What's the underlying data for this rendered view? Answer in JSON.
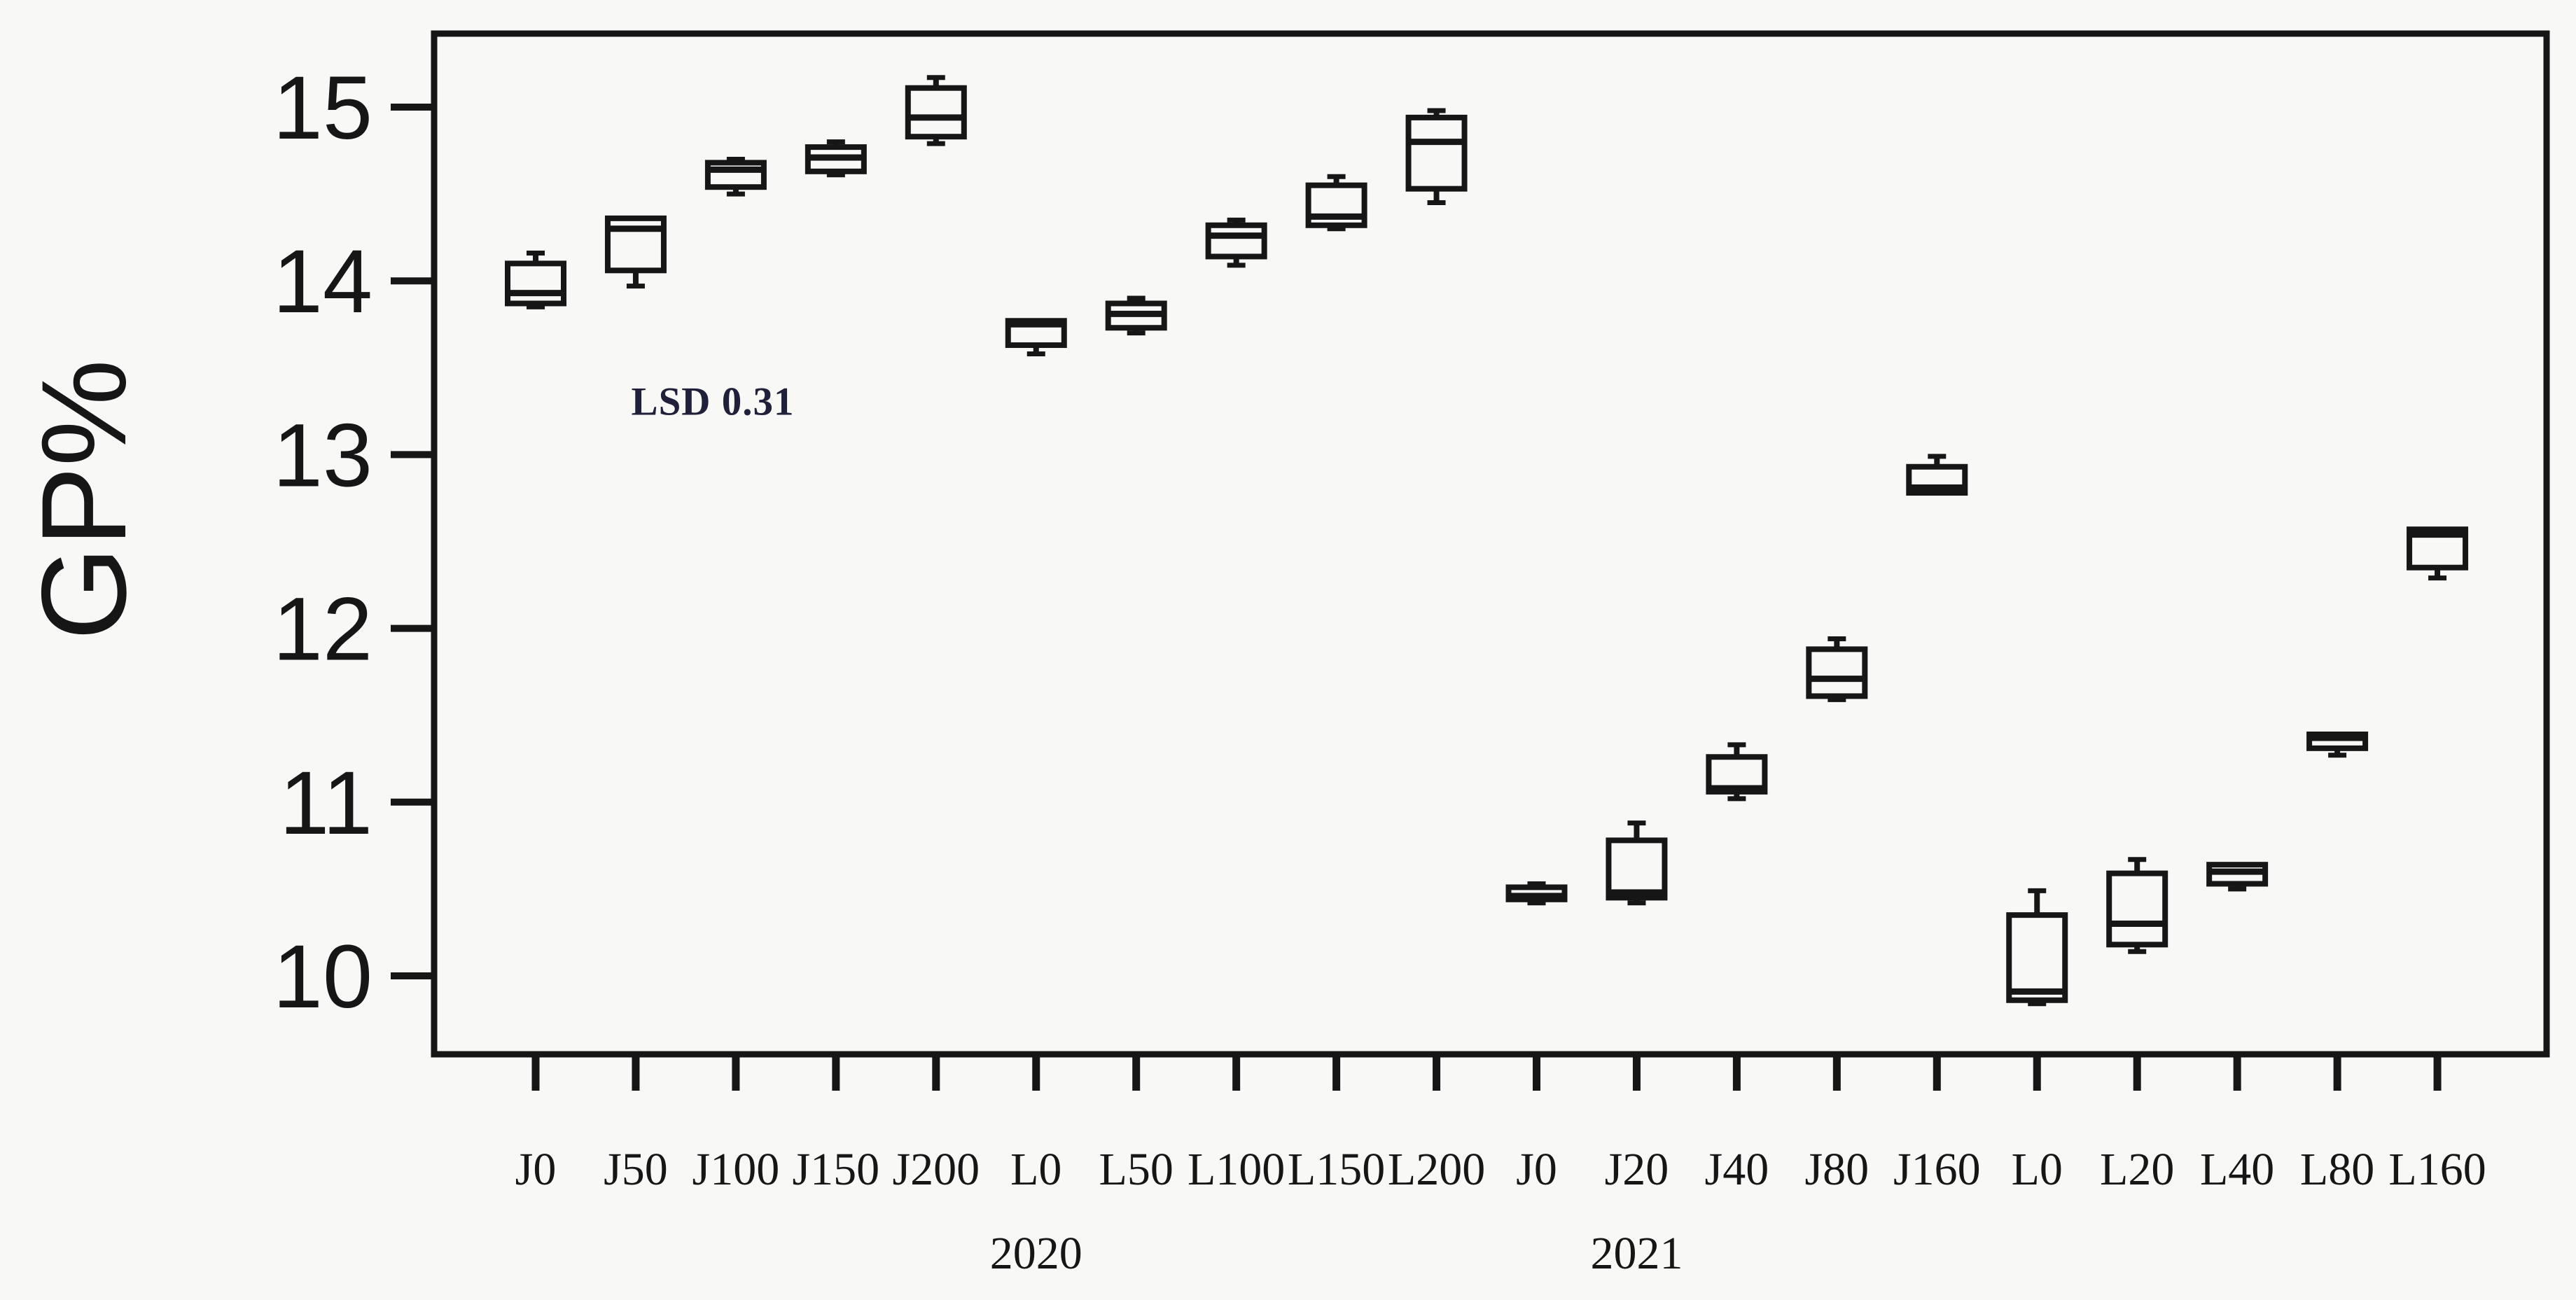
{
  "figure": {
    "background": "#f8f8f7",
    "ink_color": "#161616",
    "annotation_color": "#20203a"
  },
  "chart_data": {
    "type": "boxplot",
    "title": "",
    "xlabel": "",
    "ylabel": "GP%",
    "ylim": [
      9.55,
      15.42
    ],
    "yticks": [
      10,
      11,
      12,
      13,
      14,
      15
    ],
    "grid": false,
    "legend": "none",
    "annotation": {
      "text": "LSD 0.31",
      "x_frac": 0.132,
      "y_value": 13.3
    },
    "group_labels": [
      {
        "label": "2020",
        "tick_index": 5
      },
      {
        "label": "2021",
        "tick_index": 11
      }
    ],
    "categories": [
      "J0",
      "J50",
      "J100",
      "J150",
      "J200",
      "L0",
      "L50",
      "L100",
      "L150",
      "L200",
      "J0",
      "J20",
      "J40",
      "J80",
      "J160",
      "L0",
      "L20",
      "L40",
      "L80",
      "L160"
    ],
    "boxes": [
      {
        "label": "J0",
        "year": "2020",
        "min": 13.85,
        "q1": 13.87,
        "median": 13.93,
        "q3": 14.1,
        "max": 14.16
      },
      {
        "label": "J50",
        "year": "2020",
        "min": 13.97,
        "q1": 14.06,
        "median": 14.3,
        "q3": 14.36,
        "max": 14.36
      },
      {
        "label": "J100",
        "year": "2020",
        "min": 14.5,
        "q1": 14.54,
        "median": 14.64,
        "q3": 14.68,
        "max": 14.7
      },
      {
        "label": "J150",
        "year": "2020",
        "min": 14.61,
        "q1": 14.63,
        "median": 14.71,
        "q3": 14.77,
        "max": 14.8
      },
      {
        "label": "J200",
        "year": "2020",
        "min": 14.79,
        "q1": 14.83,
        "median": 14.94,
        "q3": 15.11,
        "max": 15.17
      },
      {
        "label": "L0",
        "year": "2020",
        "min": 13.58,
        "q1": 13.63,
        "median": 13.75,
        "q3": 13.77,
        "max": 13.77
      },
      {
        "label": "L50",
        "year": "2020",
        "min": 13.7,
        "q1": 13.73,
        "median": 13.81,
        "q3": 13.87,
        "max": 13.9
      },
      {
        "label": "L100",
        "year": "2020",
        "min": 14.09,
        "q1": 14.14,
        "median": 14.26,
        "q3": 14.32,
        "max": 14.35
      },
      {
        "label": "L150",
        "year": "2020",
        "min": 14.3,
        "q1": 14.32,
        "median": 14.37,
        "q3": 14.55,
        "max": 14.6
      },
      {
        "label": "L200",
        "year": "2020",
        "min": 14.45,
        "q1": 14.53,
        "median": 14.8,
        "q3": 14.94,
        "max": 14.98
      },
      {
        "label": "J0",
        "year": "2021",
        "min": 10.42,
        "q1": 10.44,
        "median": 10.46,
        "q3": 10.51,
        "max": 10.53
      },
      {
        "label": "J20",
        "year": "2021",
        "min": 10.42,
        "q1": 10.45,
        "median": 10.48,
        "q3": 10.78,
        "max": 10.88
      },
      {
        "label": "J40",
        "year": "2021",
        "min": 11.02,
        "q1": 11.06,
        "median": 11.08,
        "q3": 11.26,
        "max": 11.33
      },
      {
        "label": "J80",
        "year": "2021",
        "min": 11.59,
        "q1": 11.61,
        "median": 11.71,
        "q3": 11.88,
        "max": 11.94
      },
      {
        "label": "J160",
        "year": "2021",
        "min": 12.78,
        "q1": 12.78,
        "median": 12.81,
        "q3": 12.93,
        "max": 12.99
      },
      {
        "label": "L0",
        "year": "2021",
        "min": 9.84,
        "q1": 9.86,
        "median": 9.91,
        "q3": 10.35,
        "max": 10.49
      },
      {
        "label": "L20",
        "year": "2021",
        "min": 10.14,
        "q1": 10.18,
        "median": 10.3,
        "q3": 10.59,
        "max": 10.67
      },
      {
        "label": "L40",
        "year": "2021",
        "min": 10.5,
        "q1": 10.53,
        "median": 10.6,
        "q3": 10.64,
        "max": 10.64
      },
      {
        "label": "L80",
        "year": "2021",
        "min": 11.27,
        "q1": 11.31,
        "median": 11.37,
        "q3": 11.39,
        "max": 11.39
      },
      {
        "label": "L160",
        "year": "2021",
        "min": 12.29,
        "q1": 12.35,
        "median": 12.54,
        "q3": 12.57,
        "max": 12.57
      }
    ]
  }
}
